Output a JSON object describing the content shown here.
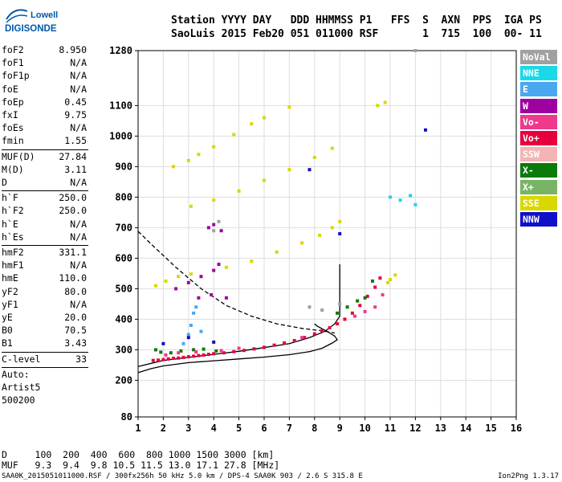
{
  "brand": {
    "line1": "Lowell",
    "line2": "DIGISONDE",
    "brand_color": "#0058a8"
  },
  "header": {
    "line1": "Station YYYY DAY   DDD HHMMSS P1   FFS  S  AXN  PPS  IGA PS",
    "line2": "SaoLuis 2015 Feb20 051 011000 RSF       1  715  100  00- 11"
  },
  "params": [
    {
      "label": "foF2",
      "value": "8.950"
    },
    {
      "label": "foF1",
      "value": "N/A"
    },
    {
      "label": "foF1p",
      "value": "N/A"
    },
    {
      "label": "foE",
      "value": "N/A"
    },
    {
      "label": "foEp",
      "value": "0.45"
    },
    {
      "label": "fxI",
      "value": "9.75"
    },
    {
      "label": "foEs",
      "value": "N/A"
    },
    {
      "label": "fmin",
      "value": "1.55"
    },
    {
      "label": "MUF(D)",
      "value": "27.84"
    },
    {
      "label": "M(D)",
      "value": "3.11"
    },
    {
      "label": "D",
      "value": "N/A"
    },
    {
      "label": "h`F",
      "value": "250.0"
    },
    {
      "label": "h`F2",
      "value": "250.0"
    },
    {
      "label": "h`E",
      "value": "N/A"
    },
    {
      "label": "h`Es",
      "value": "N/A"
    },
    {
      "label": "hmF2",
      "value": "331.1"
    },
    {
      "label": "hmF1",
      "value": "N/A"
    },
    {
      "label": "hmE",
      "value": "110.0"
    },
    {
      "label": "yF2",
      "value": "80.0"
    },
    {
      "label": "yF1",
      "value": "N/A"
    },
    {
      "label": "yE",
      "value": "20.0"
    },
    {
      "label": "B0",
      "value": "70.5"
    },
    {
      "label": "B1",
      "value": "3.43"
    },
    {
      "label": "C-level",
      "value": "33"
    },
    {
      "label": "Auto:",
      "value": ""
    },
    {
      "label": "Artist5",
      "value": ""
    },
    {
      "label": "500200",
      "value": ""
    }
  ],
  "legend": [
    {
      "label": "NoVal",
      "color": "#a0a0a0"
    },
    {
      "label": "NNE",
      "color": "#19d8e8"
    },
    {
      "label": "E",
      "color": "#4aa8f0"
    },
    {
      "label": "W",
      "color": "#a000a0"
    },
    {
      "label": "Vo-",
      "color": "#f0388c"
    },
    {
      "label": "Vo+",
      "color": "#e8003c"
    },
    {
      "label": "SSW",
      "color": "#f4b4b4"
    },
    {
      "label": "X-",
      "color": "#0a7a0a"
    },
    {
      "label": "X+",
      "color": "#78b464"
    },
    {
      "label": "SSE",
      "color": "#d8d800"
    },
    {
      "label": "NNW",
      "color": "#1010c8"
    }
  ],
  "footer": {
    "d_row": "D     100  200  400  600  800 1000 1500 3000 [km]",
    "muf_row": "MUF   9.3  9.4  9.8 10.5 11.5 13.0 17.1 27.8 [MHz]",
    "file": "SAA0K_2015051011000.RSF / 300fx256h 50 kHz 5.0 km / DPS-4 SAA0K 903 / 2.6 S 315.8 E",
    "version": "Ion2Png 1.3.17"
  },
  "chart_data": {
    "type": "scatter",
    "xlim": [
      1,
      16
    ],
    "ylim": [
      80,
      1280
    ],
    "x_ticks": [
      "1",
      "2",
      "3",
      "4",
      "5",
      "6",
      "7",
      "8",
      "9",
      "10",
      "11",
      "12",
      "13",
      "14",
      "15",
      "16"
    ],
    "y_ticks": [
      "80",
      "200",
      "300",
      "400",
      "500",
      "600",
      "700",
      "800",
      "900",
      "1000",
      "1100",
      "1280"
    ],
    "grid": true,
    "grid_color": "#dddddd",
    "series": [
      {
        "color": "#e8003c",
        "points": [
          [
            1.6,
            265
          ],
          [
            1.8,
            266
          ],
          [
            2.0,
            268
          ],
          [
            2.2,
            270
          ],
          [
            2.4,
            272
          ],
          [
            2.6,
            273
          ],
          [
            2.8,
            275
          ],
          [
            3.0,
            277
          ],
          [
            3.2,
            279
          ],
          [
            3.4,
            281
          ],
          [
            3.6,
            283
          ],
          [
            3.8,
            285
          ],
          [
            4.0,
            287
          ],
          [
            4.4,
            290
          ],
          [
            4.8,
            294
          ],
          [
            5.2,
            298
          ],
          [
            5.6,
            303
          ],
          [
            6.0,
            308
          ],
          [
            6.4,
            315
          ],
          [
            6.8,
            322
          ],
          [
            7.2,
            330
          ],
          [
            7.6,
            340
          ],
          [
            8.0,
            352
          ],
          [
            8.3,
            362
          ],
          [
            8.6,
            372
          ],
          [
            8.9,
            385
          ],
          [
            9.2,
            400
          ],
          [
            9.5,
            420
          ],
          [
            9.8,
            445
          ],
          [
            10.1,
            475
          ],
          [
            10.4,
            505
          ],
          [
            10.6,
            535
          ]
        ]
      },
      {
        "color": "#0a7a0a",
        "points": [
          [
            1.7,
            300
          ],
          [
            1.9,
            292
          ],
          [
            2.3,
            290
          ],
          [
            2.7,
            296
          ],
          [
            3.2,
            300
          ],
          [
            3.6,
            302
          ],
          [
            4.1,
            296
          ],
          [
            8.9,
            420
          ],
          [
            9.3,
            440
          ],
          [
            9.7,
            460
          ],
          [
            10.0,
            470
          ],
          [
            10.3,
            525
          ]
        ]
      },
      {
        "color": "#f0388c",
        "points": [
          [
            2.1,
            283
          ],
          [
            2.6,
            290
          ],
          [
            3.3,
            293
          ],
          [
            4.3,
            297
          ],
          [
            5.0,
            305
          ],
          [
            7.5,
            340
          ],
          [
            9.6,
            410
          ],
          [
            10.0,
            425
          ],
          [
            10.4,
            440
          ],
          [
            10.7,
            480
          ]
        ]
      },
      {
        "color": "#d8d800",
        "points": [
          [
            1.7,
            510
          ],
          [
            2.1,
            525
          ],
          [
            2.6,
            540
          ],
          [
            3.1,
            548
          ],
          [
            4.5,
            570
          ],
          [
            5.5,
            590
          ],
          [
            6.5,
            620
          ],
          [
            7.5,
            650
          ],
          [
            8.2,
            675
          ],
          [
            8.7,
            700
          ],
          [
            9.0,
            720
          ],
          [
            3.1,
            770
          ],
          [
            4.0,
            790
          ],
          [
            5.0,
            820
          ],
          [
            6.0,
            855
          ],
          [
            7.0,
            890
          ],
          [
            8.0,
            930
          ],
          [
            8.7,
            960
          ],
          [
            2.4,
            900
          ],
          [
            3.0,
            920
          ],
          [
            3.4,
            940
          ],
          [
            4.0,
            965
          ],
          [
            4.8,
            1005
          ],
          [
            5.5,
            1040
          ],
          [
            6.0,
            1060
          ],
          [
            7.0,
            1095
          ],
          [
            10.5,
            1100
          ],
          [
            10.8,
            1110
          ],
          [
            11.0,
            530
          ],
          [
            11.2,
            545
          ],
          [
            10.9,
            520
          ]
        ]
      },
      {
        "color": "#a000a0",
        "points": [
          [
            2.5,
            500
          ],
          [
            3.0,
            520
          ],
          [
            3.5,
            540
          ],
          [
            4.0,
            560
          ],
          [
            4.2,
            580
          ],
          [
            3.8,
            700
          ],
          [
            4.0,
            710
          ],
          [
            4.3,
            690
          ],
          [
            3.4,
            470
          ],
          [
            3.9,
            480
          ],
          [
            4.5,
            470
          ]
        ]
      },
      {
        "color": "#4aa8f0",
        "points": [
          [
            3.0,
            350
          ],
          [
            3.1,
            380
          ],
          [
            3.2,
            420
          ],
          [
            3.3,
            440
          ],
          [
            3.5,
            360
          ],
          [
            2.8,
            320
          ]
        ]
      },
      {
        "color": "#19d8e8",
        "points": [
          [
            11.0,
            800
          ],
          [
            11.4,
            790
          ],
          [
            11.8,
            805
          ],
          [
            12.0,
            775
          ]
        ]
      },
      {
        "color": "#1010c8",
        "points": [
          [
            2.0,
            320
          ],
          [
            3.0,
            340
          ],
          [
            4.0,
            325
          ],
          [
            9.0,
            680
          ],
          [
            7.8,
            890
          ],
          [
            12.4,
            1020
          ]
        ]
      },
      {
        "color": "#a0a0a0",
        "points": [
          [
            4.0,
            690
          ],
          [
            4.2,
            720
          ],
          [
            7.8,
            440
          ],
          [
            8.3,
            430
          ],
          [
            9.0,
            450
          ],
          [
            12.0,
            1280
          ]
        ]
      }
    ],
    "curves": [
      {
        "style": "solid",
        "points": [
          [
            1.0,
            225
          ],
          [
            1.5,
            238
          ],
          [
            2.0,
            247
          ],
          [
            3.0,
            258
          ],
          [
            4.0,
            264
          ],
          [
            5.0,
            270
          ],
          [
            6.0,
            276
          ],
          [
            7.0,
            284
          ],
          [
            7.8,
            294
          ],
          [
            8.3,
            305
          ],
          [
            8.7,
            322
          ],
          [
            8.9,
            333
          ],
          [
            8.8,
            345
          ],
          [
            8.5,
            360
          ],
          [
            8.1,
            378
          ],
          [
            8.0,
            385
          ]
        ]
      },
      {
        "style": "solid",
        "points": [
          [
            1.0,
            245
          ],
          [
            2.0,
            265
          ],
          [
            3.0,
            275
          ],
          [
            4.0,
            285
          ],
          [
            5.0,
            295
          ],
          [
            6.0,
            307
          ],
          [
            7.0,
            320
          ],
          [
            7.8,
            340
          ],
          [
            8.4,
            360
          ],
          [
            8.8,
            385
          ],
          [
            9.0,
            410
          ],
          [
            9.0,
            580
          ]
        ]
      },
      {
        "style": "dashed",
        "points": [
          [
            1.0,
            688
          ],
          [
            1.6,
            640
          ],
          [
            2.5,
            570
          ],
          [
            3.5,
            500
          ],
          [
            4.5,
            445
          ],
          [
            5.5,
            410
          ],
          [
            6.5,
            385
          ],
          [
            7.5,
            370
          ],
          [
            8.3,
            362
          ],
          [
            8.8,
            355
          ]
        ]
      }
    ]
  }
}
